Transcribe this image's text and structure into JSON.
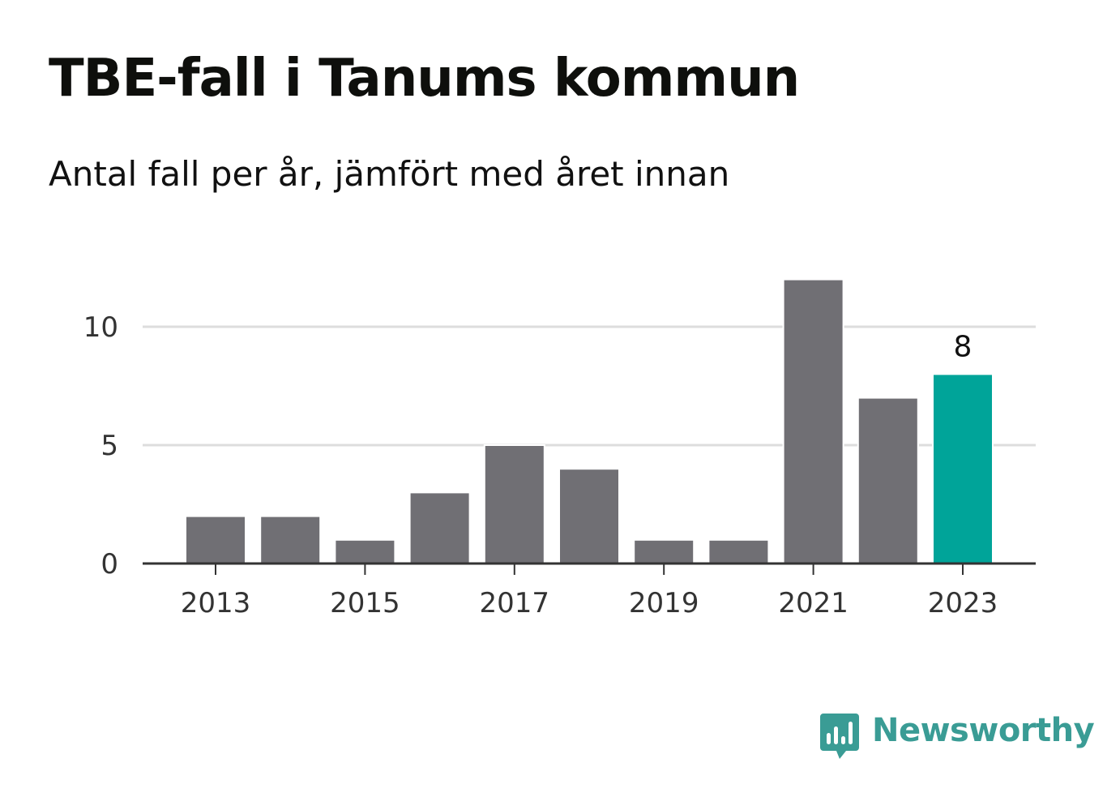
{
  "header": {
    "title": "TBE-fall i Tanums kommun",
    "subtitle": "Antal fall per år, jämfört med året innan"
  },
  "chart_data": {
    "type": "bar",
    "title": "TBE-fall i Tanums kommun",
    "subtitle": "Antal fall per år, jämfört med året innan",
    "xlabel": "",
    "ylabel": "",
    "categories": [
      "2013",
      "2014",
      "2015",
      "2016",
      "2017",
      "2018",
      "2019",
      "2020",
      "2021",
      "2022",
      "2023"
    ],
    "values": [
      2,
      2,
      1,
      3,
      5,
      4,
      1,
      1,
      12,
      7,
      8
    ],
    "x_tick_labels": [
      "2013",
      "2015",
      "2017",
      "2019",
      "2021",
      "2023"
    ],
    "y_ticks": [
      0,
      5,
      10
    ],
    "ylim": [
      0,
      12
    ],
    "grid": true,
    "legend": "none",
    "highlight": {
      "category": "2023",
      "label": "8"
    },
    "colors": {
      "bar": "#706f74",
      "highlight": "#00a499",
      "grid": "#dddddd",
      "axis": "#333333"
    }
  },
  "branding": {
    "name": "Newsworthy",
    "icon": "newsworthy-logo-icon",
    "color": "#3a9c95"
  }
}
